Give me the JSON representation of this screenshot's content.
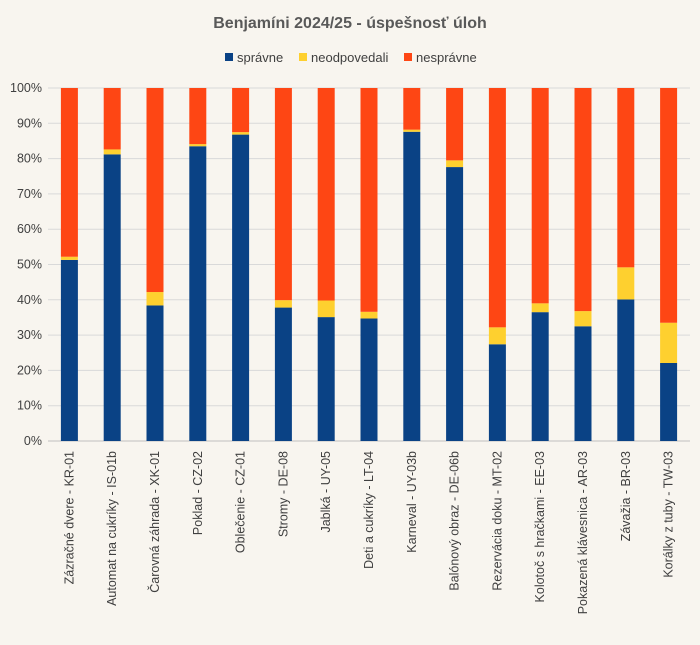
{
  "chart_data": {
    "type": "bar",
    "stacked": true,
    "title": "Benjamíni 2024/25 - úspešnosť úloh",
    "legend_position": "top",
    "ylim": [
      0,
      100
    ],
    "yticks": [
      "0%",
      "10%",
      "20%",
      "30%",
      "40%",
      "50%",
      "60%",
      "70%",
      "80%",
      "90%",
      "100%"
    ],
    "categories": [
      "Zázračné dvere - KR-01",
      "Automat na cukríky - IS-01b",
      "Čarovná záhrada - XK-01",
      "Poklad - CZ-02",
      "Oblečenie - CZ-01",
      "Stromy - DE-08",
      "Jablká - UY-05",
      "Deti a cukríky - LT-04",
      "Karneval - UY-03b",
      "Balónový obraz - DE-06b",
      "Rezervácia doku - MT-02",
      "Kolotoč s hračkami - EE-03",
      "Pokazená klávesnica - AR-03",
      "Závažia - BR-03",
      "Korálky z tuby - TW-03"
    ],
    "series": [
      {
        "name": "správne",
        "color": "#0a4285",
        "values": [
          51.3,
          81.2,
          38.4,
          83.5,
          86.8,
          37.8,
          35.1,
          34.7,
          87.6,
          77.6,
          27.4,
          36.5,
          32.5,
          40.1,
          22.1
        ]
      },
      {
        "name": "neodpovedali",
        "color": "#fed02f",
        "values": [
          0.9,
          1.4,
          3.8,
          0.6,
          0.7,
          2.1,
          4.7,
          1.9,
          0.6,
          1.9,
          4.8,
          2.5,
          4.3,
          9.1,
          11.4
        ]
      },
      {
        "name": "nesprávne",
        "color": "#fe4614",
        "values": [
          47.8,
          17.4,
          57.8,
          15.9,
          12.5,
          60.1,
          60.2,
          63.4,
          11.8,
          20.5,
          67.8,
          61.0,
          63.2,
          50.8,
          66.5
        ]
      }
    ]
  }
}
